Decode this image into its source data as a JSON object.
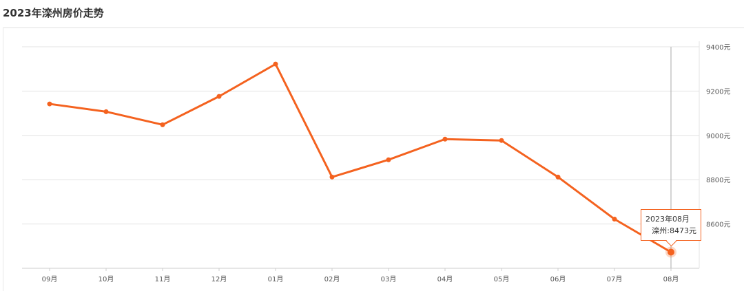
{
  "title": "2023年滦州房价走势",
  "chart_data": {
    "type": "line",
    "title": "2023年滦州房价走势",
    "categories": [
      "09月",
      "10月",
      "11月",
      "12月",
      "01月",
      "02月",
      "03月",
      "04月",
      "05月",
      "06月",
      "07月",
      "08月"
    ],
    "series": [
      {
        "name": "滦州",
        "values": [
          9142,
          9107,
          9048,
          9176,
          9322,
          8812,
          8890,
          8983,
          8977,
          8812,
          8622,
          8473
        ],
        "color": "#f4621f"
      }
    ],
    "ylim": [
      8400,
      9400
    ],
    "yticks": [
      9400,
      9200,
      9000,
      8800,
      8600
    ],
    "ytick_labels": [
      "9400元",
      "9200元",
      "9000元",
      "8800元",
      "8600元"
    ],
    "y_axis_position": "right",
    "grid": true,
    "highlighted_index": 11,
    "tooltip": {
      "title": "2023年08月",
      "label": "滦州:8473元"
    }
  }
}
